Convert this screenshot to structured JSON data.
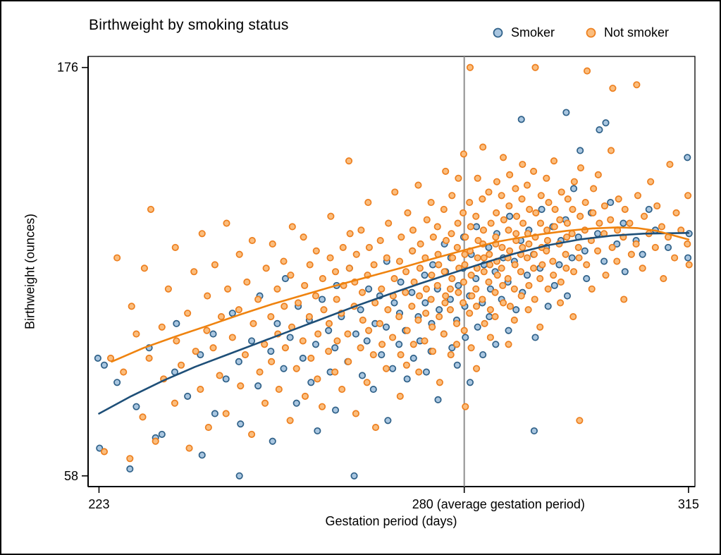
{
  "figure": {
    "title": "Birthweight by smoking status",
    "background": "#ffffff",
    "border_color": "#000000"
  },
  "legend": [
    {
      "label": "Smoker"
    },
    {
      "label": "Not smoker"
    }
  ],
  "chart_data": {
    "type": "scatter",
    "title": "Birthweight by smoking status",
    "xlabel": "Gestation period (days)",
    "ylabel": "Birthweight (ounces)",
    "xlim": [
      221.3,
      316
    ],
    "ylim": [
      54.9,
      179.2
    ],
    "grid": false,
    "legend_position": "top-right",
    "x_ticks": [
      {
        "value": 223,
        "label": "223",
        "anchor": "middle",
        "dx": 0
      },
      {
        "value": 280,
        "label": "280 (average gestation period)",
        "anchor": "start",
        "dx": -74
      },
      {
        "value": 315,
        "label": "315",
        "anchor": "middle",
        "dx": 0
      }
    ],
    "y_ticks": [
      {
        "value": 58,
        "label": "58"
      },
      {
        "value": 176,
        "label": "176"
      }
    ],
    "ref_line": {
      "x": 280,
      "color": "#8f8f8f"
    },
    "series": [
      {
        "name": "Smoker",
        "key": "smoker",
        "marker_fill": "#a9c6e0",
        "marker_stroke": "#2e6088",
        "line_color": "#1e4f78",
        "points_by_day": {
          "223": [
            92,
            66
          ],
          "224": [
            90
          ],
          "226": [
            85
          ],
          "228": [
            60
          ],
          "229": [
            78
          ],
          "231": [
            95
          ],
          "232": [
            69
          ],
          "233": [
            70
          ],
          "235": [
            88,
            102
          ],
          "237": [
            81
          ],
          "239": [
            93,
            64
          ],
          "241": [
            99,
            76
          ],
          "243": [
            86
          ],
          "244": [
            105
          ],
          "245": [
            91,
            73,
            58
          ],
          "247": [
            97
          ],
          "248": [
            84,
            110
          ],
          "250": [
            94,
            68
          ],
          "251": [
            102
          ],
          "252": [
            89,
            115
          ],
          "253": [
            98
          ],
          "254": [
            79,
            107
          ],
          "255": [
            92
          ],
          "256": [
            103,
            85
          ],
          "257": [
            96,
            71
          ],
          "258": [
            109
          ],
          "259": [
            100,
            88
          ],
          "260": [
            95,
            113,
            77
          ],
          "261": [
            104
          ],
          "262": [
            91,
            118
          ],
          "263": [
            58,
            99
          ],
          "264": [
            106,
            87
          ],
          "265": [
            97,
            112
          ],
          "266": [
            83,
            102
          ],
          "267": [
            110,
            93
          ],
          "268": [
            101,
            74,
            120
          ],
          "269": [
            89,
            108
          ],
          "270": [
            96,
            114,
            105
          ],
          "271": [
            100,
            86
          ],
          "272": [
            111,
            92,
            123
          ],
          "273": [
            104,
            97
          ],
          "274": [
            116,
            88,
            108
          ],
          "275": [
            94,
            119,
            102
          ],
          "276": [
            112,
            106,
            80
          ],
          "277": [
            99,
            117,
            125
          ],
          "278": [
            109,
            95,
            121
          ],
          "279": [
            103,
            113,
            90
          ],
          "280": [
            118,
            107,
            127,
            98
          ],
          "281": [
            110,
            122,
            85
          ],
          "282": [
            115,
            101,
            130
          ],
          "283": [
            108,
            119,
            93
          ],
          "284": [
            124,
            112,
            104
          ],
          "285": [
            117,
            128,
            96
          ],
          "286": [
            109,
            121
          ],
          "287": [
            114,
            133,
            100
          ],
          "288": [
            120,
            106
          ],
          "289": [
            126,
            111,
            161
          ],
          "290": [
            116,
            129
          ],
          "291": [
            122,
            98,
            71
          ],
          "292": [
            118,
            135
          ],
          "293": [
            124,
            107
          ],
          "294": [
            130,
            113
          ],
          "295": [
            119,
            126
          ],
          "296": [
            132,
            110,
            163
          ],
          "297": [
            121,
            141
          ],
          "298": [
            127,
            152
          ],
          "299": [
            123,
            115
          ],
          "300": [
            134
          ],
          "301": [
            128,
            158
          ],
          "302": [
            120,
            160
          ],
          "303": [
            137
          ],
          "304": [
            125
          ],
          "305": [
            131,
            117
          ],
          "307": [
            126
          ],
          "308": [
            122
          ],
          "309": [
            135
          ],
          "310": [
            129
          ],
          "312": [
            124
          ],
          "315": [
            150,
            128,
            121
          ]
        },
        "trend": [
          [
            223,
            76
          ],
          [
            228,
            81
          ],
          [
            233,
            85.5
          ],
          [
            238,
            89.5
          ],
          [
            243,
            93
          ],
          [
            248,
            96.5
          ],
          [
            253,
            100
          ],
          [
            258,
            103.5
          ],
          [
            263,
            107
          ],
          [
            268,
            110.3
          ],
          [
            273,
            113.5
          ],
          [
            278,
            116.5
          ],
          [
            283,
            119.5
          ],
          [
            288,
            122.3
          ],
          [
            293,
            124.6
          ],
          [
            298,
            126.3
          ],
          [
            303,
            127.4
          ],
          [
            308,
            128
          ],
          [
            315,
            128.2
          ]
        ]
      },
      {
        "name": "Not smoker",
        "key": "not-smoker",
        "marker_fill": "#fbbd7d",
        "marker_stroke": "#ed7f1e",
        "line_color": "#ef830f",
        "points_by_day": {
          "224": [
            65
          ],
          "225": [
            92
          ],
          "226": [
            121
          ],
          "227": [
            88
          ],
          "228": [
            63,
            107
          ],
          "229": [
            99
          ],
          "230": [
            75,
            118
          ],
          "231": [
            92,
            135
          ],
          "232": [
            68
          ],
          "233": [
            101,
            86
          ],
          "234": [
            112
          ],
          "235": [
            79,
            97,
            124
          ],
          "236": [
            90
          ],
          "237": [
            105,
            66
          ],
          "238": [
            117,
            94
          ],
          "239": [
            83,
            128
          ],
          "240": [
            100,
            72,
            110
          ],
          "241": [
            95,
            119
          ],
          "242": [
            87,
            104
          ],
          "243": [
            76,
            112,
            131
          ],
          "244": [
            98
          ],
          "245": [
            106,
            84,
            122
          ],
          "246": [
            93,
            114
          ],
          "247": [
            70,
            102,
            126
          ],
          "248": [
            109,
            88
          ],
          "249": [
            96,
            118,
            79
          ],
          "250": [
            104,
            125,
            91
          ],
          "251": [
            112,
            83,
            99
          ],
          "252": [
            120,
            95,
            107
          ],
          "253": [
            74,
            101,
            116,
            130
          ],
          "254": [
            89,
            108
          ],
          "255": [
            97,
            113,
            127,
            81
          ],
          "256": [
            104,
            92,
            119
          ],
          "257": [
            110,
            86,
            123,
            99
          ],
          "258": [
            78,
            106,
            115
          ],
          "259": [
            94,
            121,
            102,
            133
          ],
          "260": [
            88,
            109,
            117,
            97
          ],
          "261": [
            105,
            124,
            83,
            113
          ],
          "262": [
            99,
            118,
            91,
            128,
            149
          ],
          "263": [
            107,
            76,
            114,
            122
          ],
          "264": [
            95,
            111,
            129,
            103
          ],
          "265": [
            85,
            100,
            116,
            124,
            137
          ],
          "266": [
            93,
            108,
            119,
            72
          ],
          "267": [
            102,
            112,
            126,
            96
          ],
          "268": [
            89,
            106,
            121,
            131
          ],
          "269": [
            98,
            115,
            110,
            140
          ],
          "270": [
            104,
            93,
            120,
            127,
            81
          ],
          "271": [
            111,
            100,
            117,
            134,
            90
          ],
          "272": [
            107,
            96,
            123,
            114,
            129
          ],
          "273": [
            103,
            118,
            88,
            125,
            110,
            142
          ],
          "274": [
            97,
            112,
            121,
            132,
            105
          ],
          "275": [
            109,
            94,
            116,
            127,
            101,
            137
          ],
          "276": [
            113,
            104,
            122,
            85,
            119,
            130
          ],
          "277": [
            99,
            110,
            117,
            126,
            108,
            135,
            146
          ],
          "278": [
            106,
            115,
            93,
            121,
            128,
            112,
            139
          ],
          "279": [
            102,
            111,
            124,
            118,
            131,
            96,
            144
          ],
          "280": [
            108,
            119,
            114,
            127,
            100,
            134,
            122,
            151,
            78
          ],
          "281": [
            105,
            116,
            123,
            110,
            130,
            137,
            95,
            176
          ],
          "282": [
            112,
            121,
            107,
            126,
            118,
            133,
            144,
            89
          ],
          "283": [
            109,
            117,
            125,
            102,
            129,
            138,
            121,
            153
          ],
          "284": [
            114,
            106,
            122,
            131,
            119,
            140,
            98
          ],
          "285": [
            111,
            120,
            127,
            116,
            134,
            104,
            143,
            125
          ],
          "286": [
            118,
            108,
            124,
            132,
            113,
            139,
            150
          ],
          "287": [
            115,
            123,
            129,
            107,
            136,
            121,
            145,
            96
          ],
          "288": [
            112,
            126,
            119,
            133,
            141,
            103,
            128
          ],
          "289": [
            117,
            124,
            110,
            131,
            138,
            122,
            148
          ],
          "290": [
            121,
            113,
            128,
            135,
            106,
            142,
            125
          ],
          "291": [
            118,
            127,
            122,
            134,
            109,
            146,
            176
          ],
          "292": [
            115,
            124,
            131,
            119,
            139,
            101
          ],
          "293": [
            123,
            112,
            129,
            137,
            126,
            144
          ],
          "294": [
            120,
            130,
            116,
            135,
            149
          ],
          "295": [
            125,
            114,
            132,
            140,
            108
          ],
          "296": [
            122,
            131,
            118,
            138,
            127
          ],
          "297": [
            128,
            117,
            135,
            143,
            104
          ],
          "298": [
            124,
            133,
            121,
            147,
            74
          ],
          "299": [
            129,
            119,
            137,
            175
          ],
          "300": [
            126,
            134,
            112,
            141
          ],
          "301": [
            123,
            131,
            145
          ],
          "302": [
            128,
            116,
            136
          ],
          "303": [
            132,
            124,
            152,
            170
          ],
          "304": [
            120,
            138,
            129
          ],
          "305": [
            127,
            135,
            109
          ],
          "306": [
            131,
            122
          ],
          "307": [
            125,
            139,
            171
          ],
          "308": [
            118,
            133
          ],
          "309": [
            128,
            143
          ],
          "310": [
            124,
            136
          ],
          "311": [
            130,
            115
          ],
          "312": [
            127,
            148
          ],
          "313": [
            121,
            134
          ],
          "314": [
            129
          ],
          "315": [
            125,
            119,
            139
          ]
        },
        "trend": [
          [
            225,
            91
          ],
          [
            230,
            95
          ],
          [
            235,
            98.3
          ],
          [
            240,
            101.4
          ],
          [
            245,
            104.6
          ],
          [
            250,
            107.6
          ],
          [
            255,
            110.3
          ],
          [
            260,
            113
          ],
          [
            265,
            115.5
          ],
          [
            270,
            118
          ],
          [
            275,
            120.7
          ],
          [
            280,
            123.2
          ],
          [
            285,
            125.6
          ],
          [
            288,
            126.6
          ],
          [
            292,
            127.8
          ],
          [
            296,
            128.8
          ],
          [
            300,
            129.5
          ],
          [
            304,
            129.8
          ],
          [
            307,
            129.6
          ],
          [
            310,
            128.8
          ],
          [
            315,
            126.3
          ]
        ]
      }
    ]
  }
}
